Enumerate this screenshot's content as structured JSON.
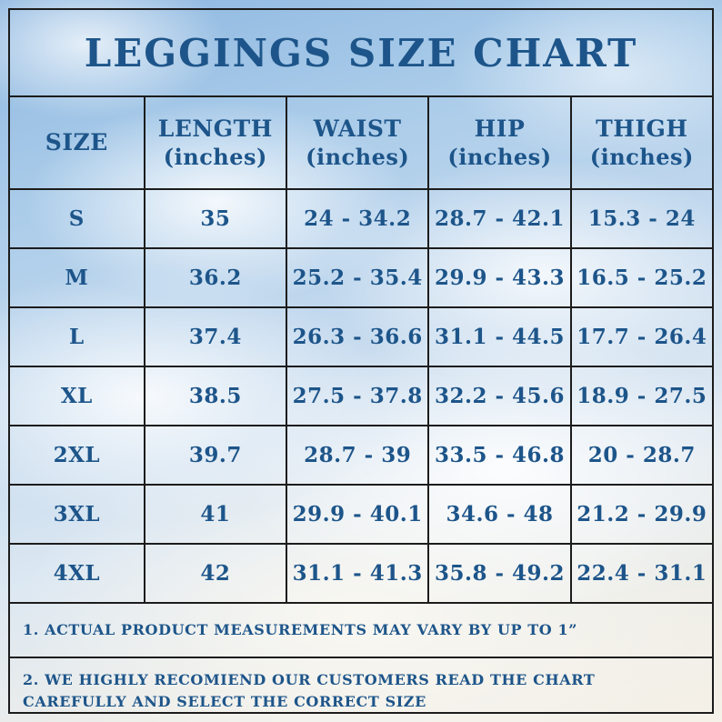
{
  "colors": {
    "text_blue": "#1d558a",
    "border_dark": "#1c1c1c",
    "sky_blue": "#8db7e0",
    "cloud_white": "#f5f1e8"
  },
  "title": "LEGGINGS SIZE CHART",
  "chart_data": {
    "type": "table",
    "title": "LEGGINGS SIZE CHART",
    "columns": [
      {
        "label": "SIZE",
        "unit": ""
      },
      {
        "label": "LENGTH",
        "unit": "(inches)"
      },
      {
        "label": "WAIST",
        "unit": "(inches)"
      },
      {
        "label": "HIP",
        "unit": "(inches)"
      },
      {
        "label": "THIGH",
        "unit": "(inches)"
      }
    ],
    "rows": [
      [
        "S",
        "35",
        "24 - 34.2",
        "28.7 - 42.1",
        "15.3 - 24"
      ],
      [
        "M",
        "36.2",
        "25.2 - 35.4",
        "29.9 - 43.3",
        "16.5 - 25.2"
      ],
      [
        "L",
        "37.4",
        "26.3 - 36.6",
        "31.1 - 44.5",
        "17.7 - 26.4"
      ],
      [
        "XL",
        "38.5",
        "27.5 - 37.8",
        "32.2 - 45.6",
        "18.9 - 27.5"
      ],
      [
        "2XL",
        "39.7",
        "28.7 - 39",
        "33.5 - 46.8",
        "20 - 28.7"
      ],
      [
        "3XL",
        "41",
        "29.9 - 40.1",
        "34.6 - 48",
        "21.2 - 29.9"
      ],
      [
        "4XL",
        "42",
        "31.1 - 41.3",
        "35.8 - 49.2",
        "22.4 - 31.1"
      ]
    ]
  },
  "notes": [
    "1. ACTUAL PRODUCT MEASUREMENTS MAY VARY BY UP TO 1”",
    "2. WE HIGHLY RECOMIEND OUR CUSTOMERS READ THE CHART CAREFULLY AND SELECT THE CORRECT SIZE"
  ]
}
